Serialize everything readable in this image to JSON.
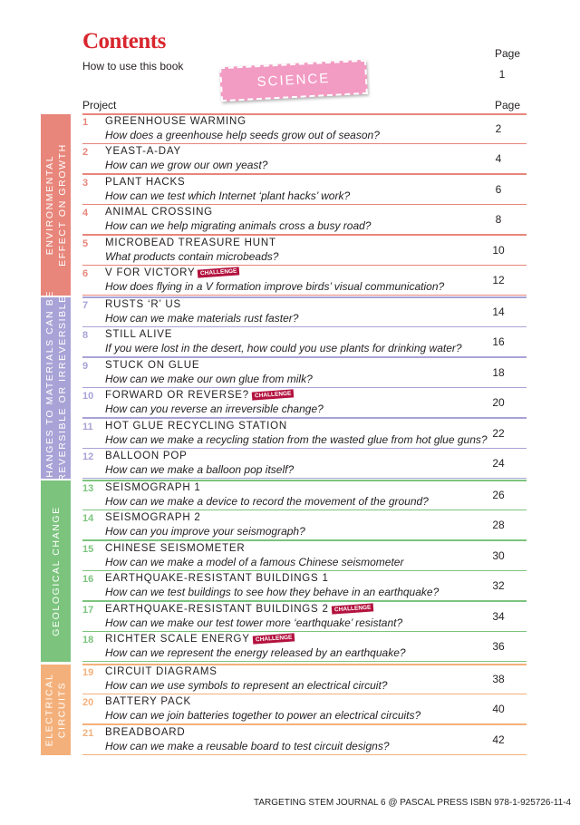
{
  "header": {
    "title": "Contents",
    "page_label": "Page",
    "how_to": "How to use this book",
    "how_to_page": 1,
    "banner": "SCIENCE",
    "project_label": "Project",
    "project_page_label": "Page"
  },
  "sections": [
    {
      "label": [
        "ENVIRONMENTAL",
        "EFFECT ON GROWTH"
      ],
      "color": "#e8867b",
      "items": [
        {
          "number": 1,
          "title": "GREENHOUSE WARMING",
          "question": "How does a greenhouse help seeds grow out of season?",
          "page": 2
        },
        {
          "number": 2,
          "title": "YEAST-A-DAY",
          "question": "How can we grow our own yeast?",
          "page": 4
        },
        {
          "number": 3,
          "title": "PLANT HACKS",
          "question": "How can we test which Internet ‘plant hacks’ work?",
          "page": 6
        },
        {
          "number": 4,
          "title": "ANIMAL CROSSING",
          "question": "How can we help migrating animals cross a busy road?",
          "page": 8
        },
        {
          "number": 5,
          "title": "MICROBEAD TREASURE HUNT",
          "question": "What products contain microbeads?",
          "page": 10
        },
        {
          "number": 6,
          "title": "V FOR VICTORY",
          "badge": "CHALLENGE",
          "question": "How does flying in a V formation improve birds’ visual communication?",
          "page": 12
        }
      ]
    },
    {
      "label": [
        "CHANGES TO MATERIALS CAN BE",
        "REVERSIBLE OR IRREVERSIBLE"
      ],
      "color": "#a8a3d6",
      "items": [
        {
          "number": 7,
          "title": "RUSTS ‘R’ US",
          "question": "How can we make materials rust faster?",
          "page": 14
        },
        {
          "number": 8,
          "title": "STILL ALIVE",
          "question": "If you were lost in the desert, how could you use plants for drinking water?",
          "page": 16
        },
        {
          "number": 9,
          "title": "STUCK ON GLUE",
          "question": "How can we make our own glue from milk?",
          "page": 18
        },
        {
          "number": 10,
          "title": "FORWARD OR REVERSE?",
          "badge": "CHALLENGE",
          "question": "How can you reverse an irreversible change?",
          "page": 20
        },
        {
          "number": 11,
          "title": "HOT GLUE RECYCLING STATION",
          "question": "How can we make a recycling station from the wasted glue from hot glue guns?",
          "page": 22
        },
        {
          "number": 12,
          "title": "BALLOON POP",
          "question": "How can we make a balloon pop itself?",
          "page": 24
        }
      ]
    },
    {
      "label": [
        "GEOLOGICAL CHANGE"
      ],
      "color": "#7cc47e",
      "items": [
        {
          "number": 13,
          "title": "SEISMOGRAPH 1",
          "question": "How can we make a device to record the movement of the ground?",
          "page": 26
        },
        {
          "number": 14,
          "title": "SEISMOGRAPH 2",
          "question": "How can you improve your seismograph?",
          "page": 28
        },
        {
          "number": 15,
          "title": "CHINESE SEISMOMETER",
          "question": "How can we make a model of a famous Chinese seismometer",
          "page": 30
        },
        {
          "number": 16,
          "title": "EARTHQUAKE-RESISTANT BUILDINGS 1",
          "question": "How can we test buildings to see how they behave in an earthquake?",
          "page": 32
        },
        {
          "number": 17,
          "title": "EARTHQUAKE-RESISTANT BUILDINGS 2",
          "badge": "CHALLENGE",
          "question": "How can we make our test tower more ‘earthquake’ resistant?",
          "page": 34
        },
        {
          "number": 18,
          "title": "RICHTER SCALE ENERGY",
          "badge": "CHALLENGE",
          "question": "How can we represent the energy released by an earthquake?",
          "page": 36
        }
      ]
    },
    {
      "label": [
        "ELECTRICAL",
        "CIRCUITS"
      ],
      "color": "#f4b07b",
      "items": [
        {
          "number": 19,
          "title": "CIRCUIT DIAGRAMS",
          "question": "How can we use symbols to represent an electrical circuit?",
          "page": 38
        },
        {
          "number": 20,
          "title": "BATTERY PACK",
          "question": "How can we join batteries together to power an electrical circuits?",
          "page": 40
        },
        {
          "number": 21,
          "title": "BREADBOARD",
          "question": "How can we make a reusable board to test circuit designs?",
          "page": 42
        }
      ]
    }
  ],
  "footer": "TARGETING STEM JOURNAL 6 @ PASCAL PRESS ISBN 978-1-925726-11-4"
}
